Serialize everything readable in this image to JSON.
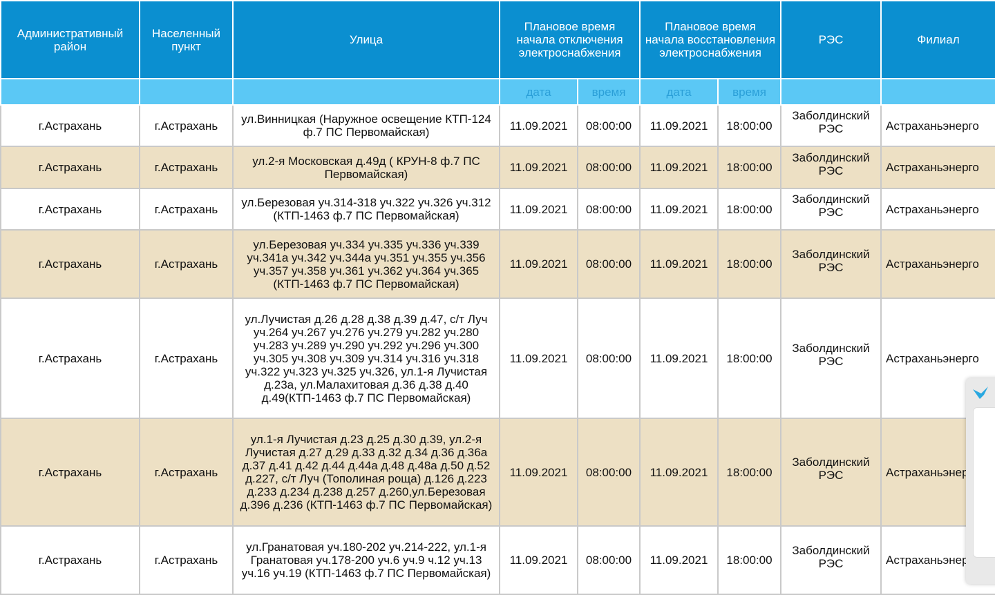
{
  "table": {
    "header": [
      "Административный район",
      "Населенный пункт",
      "Улица",
      "Плановое время начала отключения электроснабжения",
      "Плановое время начала восстановления электроснабжения",
      "РЭС",
      "Филиал"
    ],
    "subheader": [
      "дата",
      "время",
      "дата",
      "время"
    ],
    "rows": [
      [
        "г.Астрахань",
        "г.Астрахань",
        "ул.Винницкая (Наружное освещение КТП-124 ф.7 ПС Первомайская)",
        "11.09.2021",
        "08:00:00",
        "11.09.2021",
        "18:00:00",
        "Заболдинский РЭС",
        "Астраханьэнерго"
      ],
      [
        "г.Астрахань",
        "г.Астрахань",
        "ул.2-я Московская д.49д ( КРУН-8 ф.7 ПС Первомайская)",
        "11.09.2021",
        "08:00:00",
        "11.09.2021",
        "18:00:00",
        "Заболдинский РЭС",
        "Астраханьэнерго"
      ],
      [
        "г.Астрахань",
        "г.Астрахань",
        "ул.Березовая уч.314-318 уч.322 уч.326 уч.312 (КТП-1463 ф.7 ПС Первомайская)",
        "11.09.2021",
        "08:00:00",
        "11.09.2021",
        "18:00:00",
        "Заболдинский РЭС",
        "Астраханьэнерго"
      ],
      [
        "г.Астрахань",
        "г.Астрахань",
        "ул.Березовая уч.334 уч.335 уч.336 уч.339 уч.341а уч.342 уч.344а уч.351 уч.355 уч.356 уч.357 уч.358 уч.361 уч.362 уч.364 уч.365 (КТП-1463 ф.7 ПС Первомайская)",
        "11.09.2021",
        "08:00:00",
        "11.09.2021",
        "18:00:00",
        "Заболдинский РЭС",
        "Астраханьэнерго"
      ],
      [
        "г.Астрахань",
        "г.Астрахань",
        "ул.Лучистая д.26 д.28 д.38 д.39 д.47, с/т Луч уч.264 уч.267 уч.276 уч.279 уч.282 уч.280 уч.283 уч.289 уч.290 уч.292 уч.296 уч.300 уч.305 уч.308 уч.309 уч.314 уч.316 уч.318 уч.322 уч.323 уч.325 уч.326, ул.1-я Лучистая д.23а, ул.Малахитовая д.36 д.38 д.40 д.49(КТП-1463 ф.7 ПС Первомайская)",
        "11.09.2021",
        "08:00:00",
        "11.09.2021",
        "18:00:00",
        "Заболдинский РЭС",
        "Астраханьэнерго"
      ],
      [
        "г.Астрахань",
        "г.Астрахань",
        "ул.1-я Лучистая д.23 д.25 д.30 д.39, ул.2-я Лучистая д.27 д.29 д.33 д.32 д.34 д.36 д.36а д.37 д.41 д.42 д.44 д.44а д.48 д.48а д.50 д.52 д.227, с/т Луч (Тополиная роща) д.126 д.223 д.233 д.234 д.238 д.257 д.260,ул.Березовая д.396 д.236 (КТП-1463 ф.7 ПС Первомайская)",
        "11.09.2021",
        "08:00:00",
        "11.09.2021",
        "18:00:00",
        "Заболдинский РЭС",
        "Астраханьэнерго"
      ],
      [
        "г.Астрахань",
        "г.Астрахань",
        "ул.Гранатовая уч.180-202 уч.214-222, ул.1-я Гранатовая уч.178-200 уч.6 уч.9 ч.12 уч.13 уч.16 уч.19 (КТП-1463 ф.7 ПС Первомайская)",
        "11.09.2021",
        "08:00:00",
        "11.09.2021",
        "18:00:00",
        "Заболдинский РЭС",
        "Астраханьэнерго"
      ]
    ]
  }
}
